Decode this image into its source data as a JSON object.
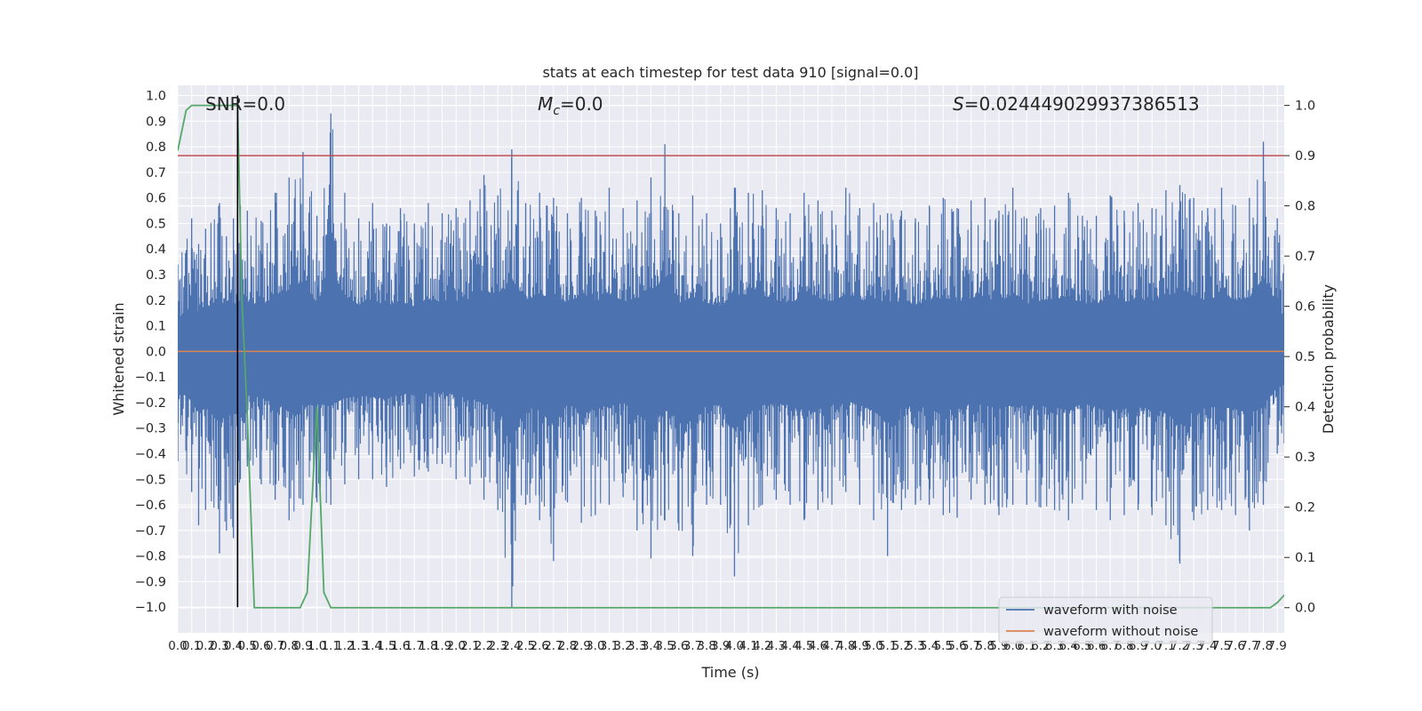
{
  "chart_data": {
    "type": "line",
    "title": "stats at each timestep for test data 910 [signal=0.0]",
    "xlabel": "Time (s)",
    "ylabel": "Whitened strain",
    "y2label": "Detection probability",
    "xlim": [
      0.0,
      7.95
    ],
    "ylim": [
      -1.1,
      1.04
    ],
    "y2lim": [
      -0.05,
      1.04
    ],
    "x_ticks": [
      "0.0",
      "0.1",
      "0.2",
      "0.3",
      "0.4",
      "0.5",
      "0.6",
      "0.7",
      "0.8",
      "0.9",
      "1.0",
      "1.1",
      "1.2",
      "1.3",
      "1.4",
      "1.5",
      "1.6",
      "1.7",
      "1.8",
      "1.9",
      "2.0",
      "2.1",
      "2.2",
      "2.3",
      "2.4",
      "2.5",
      "2.6",
      "2.7",
      "2.8",
      "2.9",
      "3.0",
      "3.1",
      "3.2",
      "3.3",
      "3.4",
      "3.5",
      "3.6",
      "3.7",
      "3.8",
      "3.9",
      "4.0",
      "4.1",
      "4.2",
      "4.3",
      "4.4",
      "4.5",
      "4.6",
      "4.7",
      "4.8",
      "4.9",
      "5.0",
      "5.1",
      "5.2",
      "5.3",
      "5.4",
      "5.5",
      "5.6",
      "5.7",
      "5.8",
      "5.9",
      "6.0",
      "6.1",
      "6.2",
      "6.3",
      "6.4",
      "6.5",
      "6.6",
      "6.7",
      "6.8",
      "6.9",
      "7.0",
      "7.1",
      "7.2",
      "7.3",
      "7.4",
      "7.5",
      "7.6",
      "7.7",
      "7.8",
      "7.9"
    ],
    "y_ticks": [
      "−1.0",
      "−0.9",
      "−0.8",
      "−0.7",
      "−0.6",
      "−0.5",
      "−0.4",
      "−0.3",
      "−0.2",
      "−0.1",
      "0.0",
      "0.1",
      "0.2",
      "0.3",
      "0.4",
      "0.5",
      "0.6",
      "0.7",
      "0.8",
      "0.9",
      "1.0"
    ],
    "y2_ticks": [
      "0.0",
      "0.1",
      "0.2",
      "0.3",
      "0.4",
      "0.5",
      "0.6",
      "0.7",
      "0.8",
      "0.9",
      "1.0"
    ],
    "grid": true,
    "legend_position": "lower-right",
    "annotations": {
      "snr": "SNR=0.0",
      "mc_symbol": "M",
      "mc_sub": "c",
      "mc_value": "=0.0",
      "s_symbol": "S",
      "s_value": "=0.024449029937386513"
    },
    "series": [
      {
        "name": "waveform with noise",
        "color": "#4c72b0",
        "axis": "left",
        "envelope": {
          "x": [
            0.0,
            0.1,
            0.15,
            0.2,
            0.3,
            0.35,
            0.4,
            0.45,
            0.5,
            0.6,
            0.7,
            0.8,
            0.9,
            1.0,
            1.1,
            1.2,
            1.3,
            1.4,
            1.5,
            1.6,
            1.7,
            1.8,
            1.9,
            2.0,
            2.1,
            2.2,
            2.3,
            2.4,
            2.5,
            2.6,
            2.7,
            2.8,
            2.9,
            3.0,
            3.1,
            3.2,
            3.3,
            3.4,
            3.5,
            3.6,
            3.7,
            3.8,
            3.9,
            4.0,
            4.1,
            4.2,
            4.3,
            4.4,
            4.5,
            4.6,
            4.7,
            4.8,
            4.9,
            5.0,
            5.1,
            5.2,
            5.3,
            5.4,
            5.5,
            5.6,
            5.7,
            5.8,
            5.9,
            6.0,
            6.1,
            6.2,
            6.3,
            6.4,
            6.5,
            6.6,
            6.7,
            6.8,
            6.9,
            7.0,
            7.1,
            7.2,
            7.3,
            7.4,
            7.5,
            7.6,
            7.7,
            7.8,
            7.9,
            7.95
          ],
          "upper": [
            0.34,
            0.52,
            0.42,
            0.48,
            0.58,
            0.45,
            0.52,
            0.57,
            0.55,
            0.51,
            0.62,
            0.68,
            0.78,
            0.53,
            0.93,
            0.62,
            0.52,
            0.58,
            0.5,
            0.56,
            0.5,
            0.58,
            0.54,
            0.56,
            0.59,
            0.69,
            0.61,
            0.79,
            0.58,
            0.62,
            0.6,
            0.54,
            0.6,
            0.55,
            0.64,
            0.56,
            0.59,
            0.68,
            0.81,
            0.54,
            0.61,
            0.54,
            0.5,
            0.64,
            0.62,
            0.63,
            0.56,
            0.54,
            0.62,
            0.59,
            0.55,
            0.64,
            0.56,
            0.58,
            0.54,
            0.55,
            0.52,
            0.57,
            0.6,
            0.56,
            0.59,
            0.6,
            0.55,
            0.64,
            0.52,
            0.56,
            0.57,
            0.62,
            0.53,
            0.53,
            0.61,
            0.55,
            0.58,
            0.56,
            0.63,
            0.65,
            0.6,
            0.56,
            0.64,
            0.57,
            0.6,
            0.82,
            0.52,
            0.34
          ],
          "lower": [
            -0.43,
            -0.55,
            -0.68,
            -0.62,
            -0.79,
            -0.7,
            -0.73,
            -0.5,
            -0.45,
            -0.52,
            -0.58,
            -0.66,
            -0.6,
            -0.59,
            -0.6,
            -0.52,
            -0.5,
            -0.5,
            -0.53,
            -0.46,
            -0.49,
            -0.47,
            -0.44,
            -0.5,
            -0.52,
            -0.58,
            -0.62,
            -1.0,
            -0.6,
            -0.66,
            -0.82,
            -0.59,
            -0.67,
            -0.64,
            -0.6,
            -0.57,
            -0.7,
            -0.81,
            -0.66,
            -0.7,
            -0.8,
            -0.6,
            -0.6,
            -0.88,
            -0.68,
            -0.6,
            -0.58,
            -0.6,
            -0.66,
            -0.62,
            -0.6,
            -0.55,
            -0.6,
            -0.66,
            -0.8,
            -0.62,
            -0.6,
            -0.6,
            -0.64,
            -0.65,
            -0.58,
            -0.6,
            -0.64,
            -0.6,
            -0.6,
            -0.61,
            -0.62,
            -0.66,
            -0.58,
            -0.62,
            -0.66,
            -0.64,
            -0.62,
            -0.64,
            -0.68,
            -0.83,
            -0.66,
            -0.62,
            -0.62,
            -0.64,
            -0.7,
            -0.6,
            -0.4,
            -0.36
          ]
        }
      },
      {
        "name": "waveform without noise",
        "color": "#dd8452",
        "axis": "left",
        "x": [
          0.0,
          7.95
        ],
        "y": [
          0.0,
          0.0
        ]
      },
      {
        "color": "#55a868",
        "axis": "right",
        "x": [
          0.0,
          0.06,
          0.1,
          0.13,
          0.2,
          0.3,
          0.43,
          0.46,
          0.5,
          0.55,
          0.6,
          0.7,
          0.8,
          0.88,
          0.93,
          1.0,
          1.05,
          1.1,
          1.15,
          1.2,
          1.5,
          2.0,
          3.0,
          4.0,
          5.0,
          6.0,
          7.0,
          7.5,
          7.85,
          7.9,
          7.95
        ],
        "y": [
          0.91,
          0.99,
          1.0,
          1.0,
          1.0,
          1.0,
          1.0,
          0.62,
          0.38,
          0.0,
          0.0,
          0.0,
          0.0,
          0.0,
          0.03,
          0.4,
          0.03,
          0.0,
          0.0,
          0.0,
          0.0,
          0.0,
          0.0,
          0.0,
          0.0,
          0.0,
          0.0,
          0.0,
          0.0,
          0.01,
          0.025
        ]
      }
    ],
    "hlines": [
      {
        "axis": "right",
        "y": 0.9,
        "color": "#c44e52"
      }
    ],
    "vlines": [
      {
        "x": 0.43,
        "ymin": -1.0,
        "ymax": 1.0,
        "color": "#000000"
      }
    ]
  }
}
